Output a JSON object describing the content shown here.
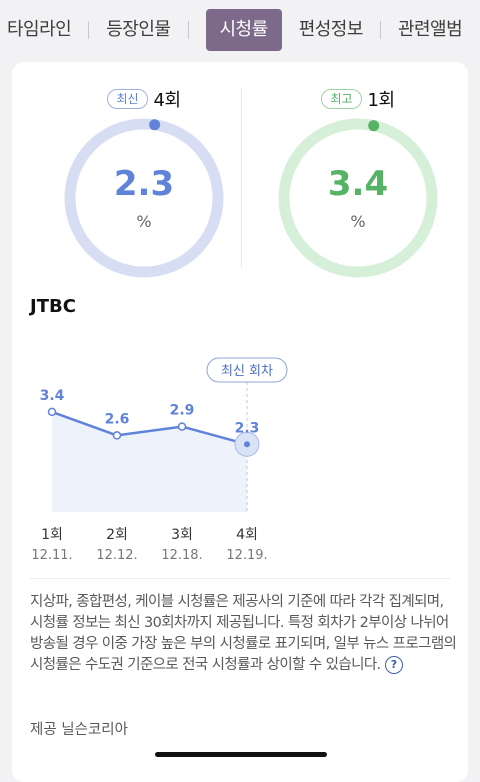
{
  "tabs": [
    {
      "label": "타임라인",
      "active": false
    },
    {
      "label": "등장인물",
      "active": false
    },
    {
      "label": "시청률",
      "active": true
    },
    {
      "label": "편성정보",
      "active": false
    },
    {
      "label": "관련앨범",
      "active": false
    }
  ],
  "latest": {
    "badge": "최신",
    "episode": "4회",
    "value": "2.3",
    "unit": "%",
    "fraction": 0.023,
    "color": "#5f83d8",
    "track_color": "#d7def4"
  },
  "best": {
    "badge": "최고",
    "episode": "1회",
    "value": "3.4",
    "unit": "%",
    "fraction": 0.034,
    "color": "#55b366",
    "track_color": "#d6efd9"
  },
  "channel": "JTBC",
  "chart_data": {
    "type": "area",
    "ylim": [
      0,
      5.5
    ],
    "points": [
      {
        "episode": "1회",
        "date": "12.11.",
        "value": 3.4,
        "label": "3.4"
      },
      {
        "episode": "2회",
        "date": "12.12.",
        "value": 2.6,
        "label": "2.6"
      },
      {
        "episode": "3회",
        "date": "12.18.",
        "value": 2.9,
        "label": "2.9"
      },
      {
        "episode": "4회",
        "date": "12.19.",
        "value": 2.3,
        "label": "2.3"
      }
    ],
    "highlight_label": "최신 회차",
    "highlight_index": 3,
    "color": "#5f83d8",
    "fill_color": "#eef2fb"
  },
  "note": {
    "text": "지상파, 종합편성, 케이블 시청률은 제공사의 기준에 따라 각각 집계되며, 시청률 정보는 최신 30회차까지 제공됩니다. 특정 회차가 2부이상 나뉘어 방송될 경우 이중 가장 높은 부의 시청률로 표기되며, 일부 뉴스 프로그램의 시청률은 수도권 기준으로 전국 시청률과 상이할 수 있습니다.",
    "help_symbol": "?"
  },
  "provider": "제공 닐슨코리아"
}
